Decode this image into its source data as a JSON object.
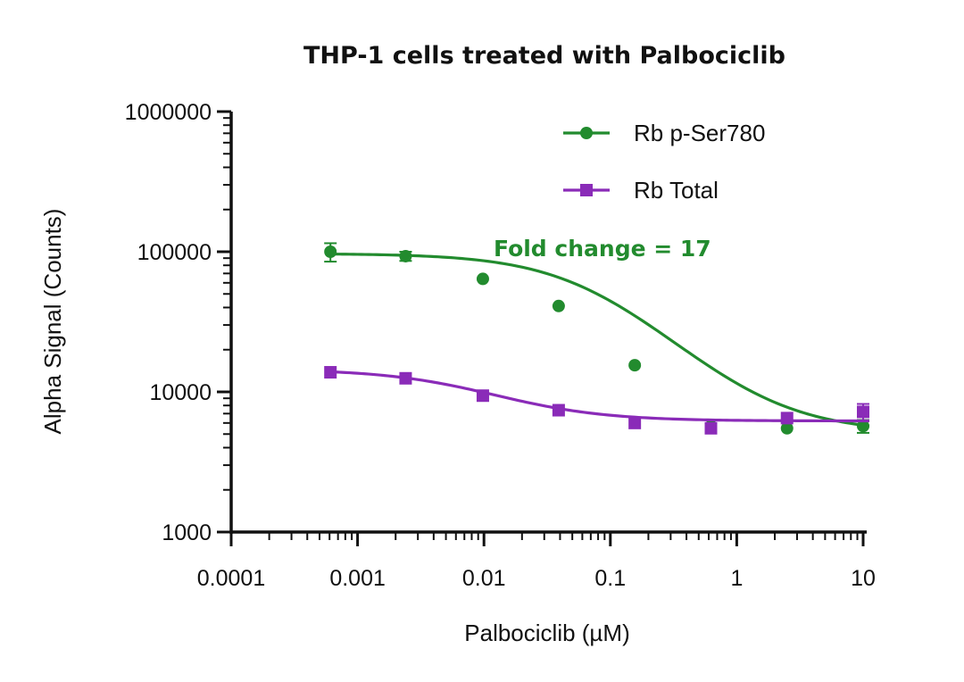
{
  "chart_data": {
    "type": "scatter",
    "title": "THP-1 cells treated with Palbociclib",
    "xlabel": "Palbociclib (µM)",
    "ylabel": "Alpha Signal (Counts)",
    "xscale": "log",
    "yscale": "log",
    "xlim": [
      0.0001,
      10
    ],
    "ylim": [
      1000,
      1000000
    ],
    "x_ticks": [
      "0.0001",
      "0.001",
      "0.01",
      "0.1",
      "1",
      "10"
    ],
    "y_ticks": [
      "1000",
      "10000",
      "100000",
      "1000000"
    ],
    "grid": false,
    "legend_position": "top-right",
    "annotation": "Fold change = 17",
    "series": [
      {
        "name": "Rb p-Ser780",
        "color": "#228B2E",
        "marker": "circle",
        "x": [
          0.00061,
          0.0024,
          0.0098,
          0.039,
          0.156,
          0.625,
          2.5,
          10
        ],
        "y": [
          100000,
          93000,
          64000,
          41000,
          15500,
          5700,
          5500,
          5700
        ],
        "error": [
          15000,
          7000,
          0,
          0,
          0,
          0,
          0,
          600
        ],
        "fit_curve": {
          "top": 97000,
          "bottom": 5100,
          "ic50": 0.075,
          "hill": 1.0
        }
      },
      {
        "name": "Rb Total",
        "color": "#8A2BB8",
        "marker": "square",
        "x": [
          0.00061,
          0.0024,
          0.0098,
          0.039,
          0.156,
          0.625,
          2.5,
          10
        ],
        "y": [
          13800,
          12500,
          9400,
          7400,
          6000,
          5500,
          6500,
          7200
        ],
        "error": [
          0,
          0,
          0,
          0,
          0,
          0,
          0,
          1000
        ],
        "fit_curve": {
          "top": 14500,
          "bottom": 6200,
          "ic50": 0.008,
          "hill": 1.0
        }
      }
    ]
  }
}
